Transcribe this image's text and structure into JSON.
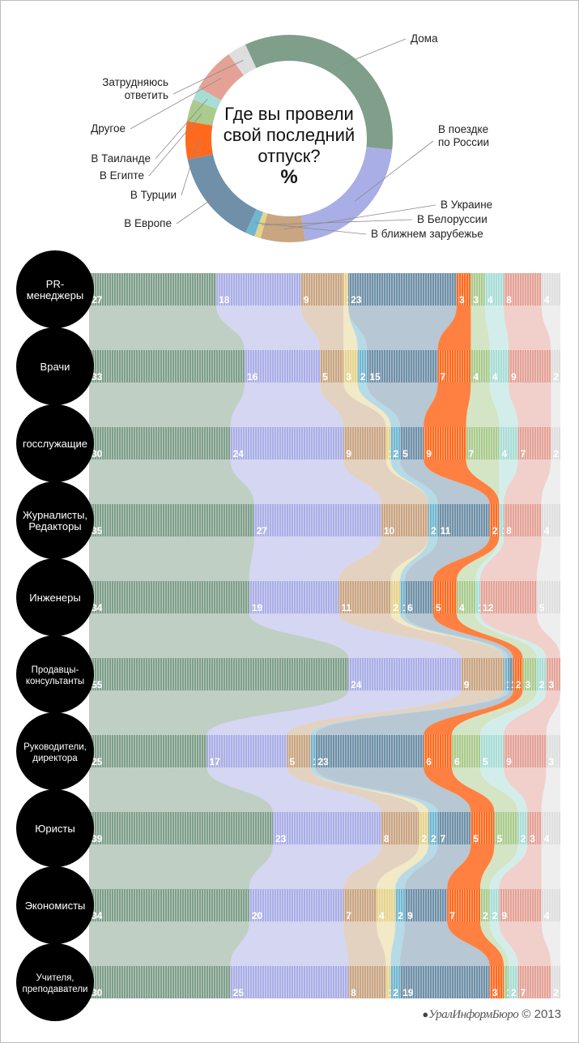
{
  "credit": {
    "brand": "УралИнформБюро",
    "year": "© 2013"
  },
  "colors": {
    "home": "#7f9f8a",
    "russia": "#a9aee6",
    "ukraine": "#c9a582",
    "belarus": "#e6d48d",
    "near_abroad": "#6fb6d0",
    "europe": "#6f90a8",
    "turkey": "#ff6a1f",
    "egypt": "#aacb8d",
    "thailand": "#a8ddd6",
    "other": "#e4a297",
    "unsure": "#dedede"
  },
  "chart_data": [
    {
      "type": "pie",
      "title_lines": [
        "Где вы провели",
        "свой последний",
        "отпуск?",
        "%"
      ],
      "slices": [
        {
          "key": "home",
          "label_lines": [
            "Дома"
          ],
          "value": 34
        },
        {
          "key": "russia",
          "label_lines": [
            "В поездке",
            "по России"
          ],
          "value": 21
        },
        {
          "key": "ukraine",
          "label_lines": [
            "В Украине"
          ],
          "value": 7
        },
        {
          "key": "belarus",
          "label_lines": [
            "В Белоруссии"
          ],
          "value": 1
        },
        {
          "key": "near_abroad",
          "label_lines": [
            "В ближнем зарубежье"
          ],
          "value": 1.5
        },
        {
          "key": "europe",
          "label_lines": [
            "В Европе"
          ],
          "value": 15
        },
        {
          "key": "turkey",
          "label_lines": [
            "В Турции"
          ],
          "value": 6
        },
        {
          "key": "egypt",
          "label_lines": [
            "В Египте"
          ],
          "value": 3.5
        },
        {
          "key": "thailand",
          "label_lines": [
            "В Таиланде"
          ],
          "value": 2
        },
        {
          "key": "other",
          "label_lines": [
            "Другое"
          ],
          "value": 7
        },
        {
          "key": "unsure",
          "label_lines": [
            "Затрудняюсь",
            "ответить"
          ],
          "value": 3
        }
      ]
    },
    {
      "type": "bar",
      "stacked": true,
      "normalized_percent": true,
      "series_keys": [
        "home",
        "russia",
        "ukraine",
        "belarus",
        "near_abroad",
        "europe",
        "turkey",
        "egypt",
        "thailand",
        "other",
        "unsure"
      ],
      "rows": [
        {
          "label_lines": [
            "PR-",
            "менеджеры"
          ],
          "values": [
            27,
            18,
            9,
            1,
            0,
            23,
            3,
            3,
            4,
            8,
            4
          ],
          "labels": [
            "27",
            "18",
            "9",
            "1",
            "",
            "23",
            "3",
            "3",
            "4",
            "8",
            "4"
          ]
        },
        {
          "label_lines": [
            "Врачи"
          ],
          "values": [
            33,
            16,
            5,
            3,
            2,
            15,
            7,
            4,
            4,
            9,
            2
          ],
          "labels": [
            "33",
            "16",
            "5",
            "3",
            "2",
            "15",
            "7",
            "4",
            "4",
            "9",
            "2"
          ]
        },
        {
          "label_lines": [
            "госслужащие"
          ],
          "values": [
            30,
            24,
            9,
            1,
            2,
            5,
            9,
            7,
            4,
            7,
            2
          ],
          "labels": [
            "30",
            "24",
            "9",
            "1",
            "2",
            "5",
            "9",
            "7",
            "4",
            "7",
            "2"
          ]
        },
        {
          "label_lines": [
            "Журналисты,",
            "Редакторы"
          ],
          "values": [
            35,
            27,
            10,
            0,
            2,
            11,
            2,
            0,
            1,
            8,
            4
          ],
          "labels": [
            "35",
            "27",
            "10",
            "",
            "2",
            "11",
            "2",
            "",
            "1",
            "8",
            "4"
          ]
        },
        {
          "label_lines": [
            "Инженеры"
          ],
          "values": [
            34,
            19,
            11,
            2,
            1,
            6,
            5,
            4,
            1,
            12,
            5
          ],
          "labels": [
            "34",
            "19",
            "11",
            "2",
            "1",
            "6",
            "5",
            "4",
            "1",
            "12",
            "5"
          ]
        },
        {
          "label_lines": [
            "Продавцы-",
            "консультанты"
          ],
          "values": [
            55,
            24,
            9,
            0,
            1,
            1,
            2,
            3,
            2,
            3,
            0
          ],
          "labels": [
            "55",
            "24",
            "9",
            "",
            "1",
            "1",
            "2",
            "3",
            "2",
            "3",
            ""
          ]
        },
        {
          "label_lines": [
            "Руководители,",
            "директора"
          ],
          "values": [
            25,
            17,
            5,
            0,
            1,
            23,
            6,
            6,
            5,
            9,
            3
          ],
          "labels": [
            "25",
            "17",
            "5",
            "",
            "1",
            "23",
            "6",
            "6",
            "5",
            "9",
            "3"
          ]
        },
        {
          "label_lines": [
            "Юристы"
          ],
          "values": [
            39,
            23,
            8,
            2,
            2,
            7,
            5,
            5,
            2,
            3,
            4
          ],
          "labels": [
            "39",
            "23",
            "8",
            "2",
            "2",
            "7",
            "5",
            "5",
            "2",
            "3",
            "4"
          ]
        },
        {
          "label_lines": [
            "Экономисты"
          ],
          "values": [
            34,
            20,
            7,
            4,
            2,
            9,
            7,
            2,
            2,
            9,
            4
          ],
          "labels": [
            "34",
            "20",
            "7",
            "4",
            "2",
            "9",
            "7",
            "2",
            "2",
            "9",
            "4"
          ]
        },
        {
          "label_lines": [
            "Учителя,",
            "преподаватели"
          ],
          "values": [
            30,
            25,
            8,
            1,
            2,
            19,
            3,
            1,
            2,
            7,
            2
          ],
          "labels": [
            "30",
            "25",
            "8",
            "1",
            "2",
            "19",
            "3",
            "1",
            "2",
            "7",
            "2"
          ]
        }
      ]
    }
  ]
}
